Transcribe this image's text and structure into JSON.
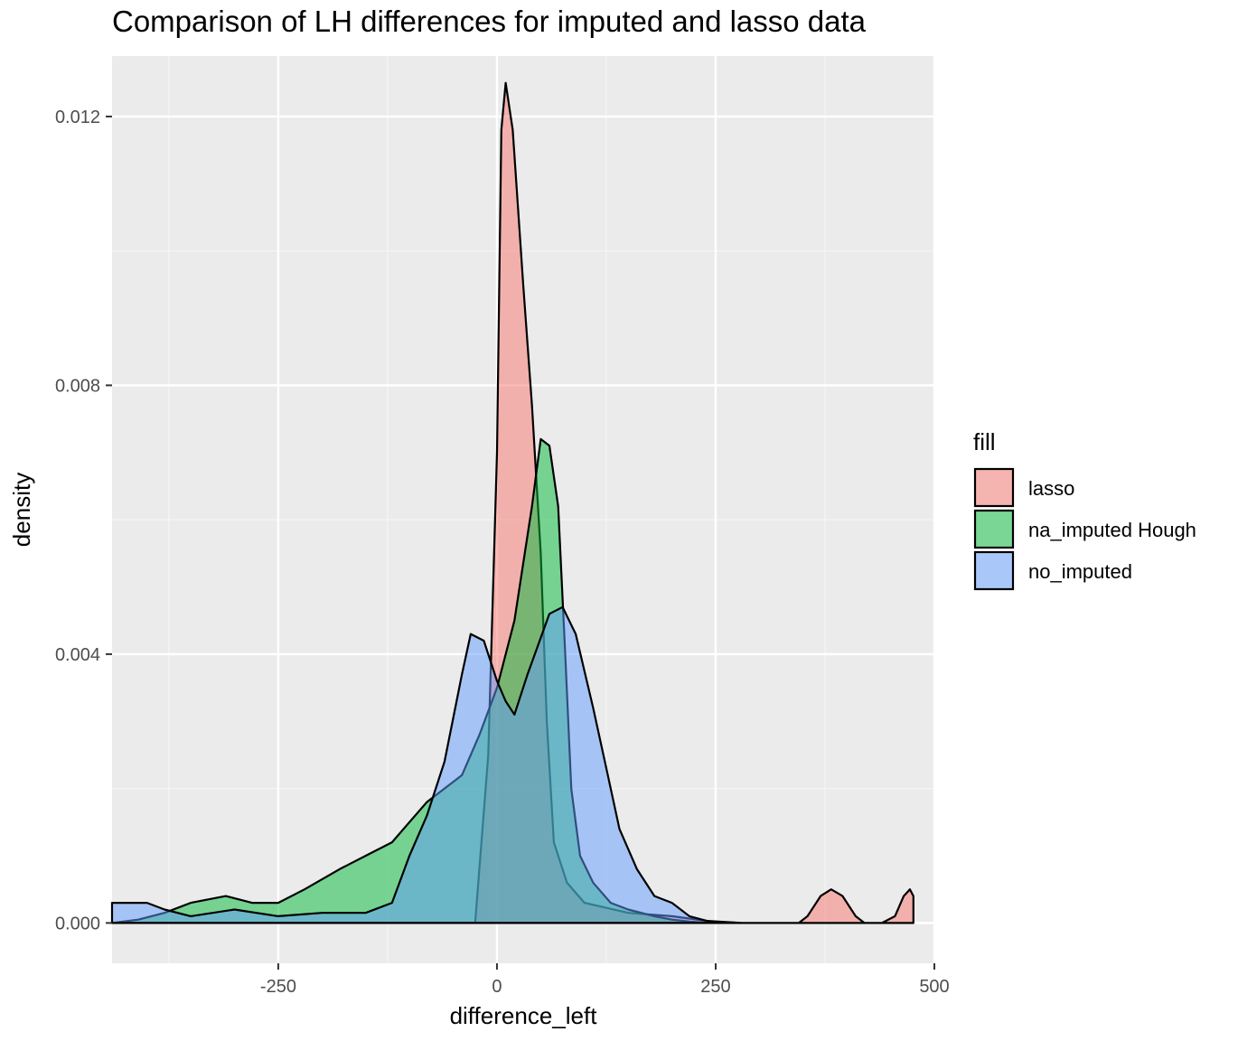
{
  "chart_data": {
    "type": "area",
    "title": "Comparison of LH differences for imputed and lasso data",
    "xlabel": "difference_left",
    "ylabel": "density",
    "xlim": [
      -440,
      500
    ],
    "ylim": [
      -0.0006,
      0.0129
    ],
    "x_ticks": [
      -250,
      0,
      250,
      500
    ],
    "x_tick_labels": [
      "-250",
      "0",
      "250",
      "500"
    ],
    "y_ticks": [
      0.0,
      0.004,
      0.008,
      0.012
    ],
    "y_tick_labels": [
      "0.000",
      "0.004",
      "0.008",
      "0.012"
    ],
    "grid": true,
    "legend": {
      "title": "fill",
      "position": "right"
    },
    "series": [
      {
        "name": "lasso",
        "color": "#F8766D",
        "points": [
          [
            -440,
            0
          ],
          [
            -25,
            0
          ],
          [
            -10,
            0.0025
          ],
          [
            0,
            0.007
          ],
          [
            5,
            0.0118
          ],
          [
            10,
            0.0125
          ],
          [
            18,
            0.0118
          ],
          [
            30,
            0.0095
          ],
          [
            40,
            0.0077
          ],
          [
            50,
            0.0055
          ],
          [
            57,
            0.003
          ],
          [
            65,
            0.0012
          ],
          [
            80,
            0.0006
          ],
          [
            100,
            0.0003
          ],
          [
            150,
            0.00015
          ],
          [
            200,
            0.0001
          ],
          [
            240,
            3e-05
          ],
          [
            280,
            0
          ],
          [
            345,
            0
          ],
          [
            355,
            0.0001
          ],
          [
            370,
            0.0004
          ],
          [
            382,
            0.0005
          ],
          [
            395,
            0.0004
          ],
          [
            410,
            0.0001
          ],
          [
            420,
            0
          ],
          [
            440,
            0
          ],
          [
            455,
            0.0001
          ],
          [
            465,
            0.0004
          ],
          [
            472,
            0.0005
          ],
          [
            476,
            0.0004
          ],
          [
            476,
            0
          ]
        ]
      },
      {
        "name": "na_imputed Hough",
        "color": "#00BA38",
        "points": [
          [
            -440,
            0
          ],
          [
            -410,
            5e-05
          ],
          [
            -380,
            0.00015
          ],
          [
            -350,
            0.0003
          ],
          [
            -310,
            0.0004
          ],
          [
            -280,
            0.0003
          ],
          [
            -250,
            0.0003
          ],
          [
            -220,
            0.0005
          ],
          [
            -180,
            0.0008
          ],
          [
            -150,
            0.001
          ],
          [
            -120,
            0.0012
          ],
          [
            -100,
            0.0015
          ],
          [
            -80,
            0.0018
          ],
          [
            -60,
            0.002
          ],
          [
            -40,
            0.0022
          ],
          [
            -20,
            0.0028
          ],
          [
            0,
            0.0035
          ],
          [
            20,
            0.0045
          ],
          [
            40,
            0.0062
          ],
          [
            50,
            0.0072
          ],
          [
            60,
            0.0071
          ],
          [
            70,
            0.0062
          ],
          [
            78,
            0.004
          ],
          [
            85,
            0.002
          ],
          [
            95,
            0.001
          ],
          [
            110,
            0.0006
          ],
          [
            130,
            0.0003
          ],
          [
            150,
            0.0002
          ],
          [
            180,
            0.0001
          ],
          [
            200,
            5e-05
          ],
          [
            220,
            2e-05
          ],
          [
            240,
            0
          ]
        ]
      },
      {
        "name": "no_imputed",
        "color": "#619CFF",
        "points": [
          [
            -440,
            0.0003
          ],
          [
            -420,
            0.0003
          ],
          [
            -400,
            0.0003
          ],
          [
            -380,
            0.0002
          ],
          [
            -350,
            0.0001
          ],
          [
            -300,
            0.0002
          ],
          [
            -250,
            0.0001
          ],
          [
            -200,
            0.00015
          ],
          [
            -150,
            0.00015
          ],
          [
            -120,
            0.0003
          ],
          [
            -100,
            0.001
          ],
          [
            -80,
            0.0016
          ],
          [
            -60,
            0.0024
          ],
          [
            -40,
            0.0037
          ],
          [
            -30,
            0.0043
          ],
          [
            -15,
            0.0042
          ],
          [
            0,
            0.0036
          ],
          [
            10,
            0.0033
          ],
          [
            20,
            0.0031
          ],
          [
            35,
            0.0037
          ],
          [
            60,
            0.0046
          ],
          [
            75,
            0.0047
          ],
          [
            90,
            0.0043
          ],
          [
            110,
            0.0032
          ],
          [
            125,
            0.0023
          ],
          [
            140,
            0.0014
          ],
          [
            160,
            0.0008
          ],
          [
            180,
            0.0004
          ],
          [
            200,
            0.0003
          ],
          [
            220,
            0.0001
          ],
          [
            240,
            3e-05
          ],
          [
            260,
            0
          ]
        ]
      }
    ]
  }
}
